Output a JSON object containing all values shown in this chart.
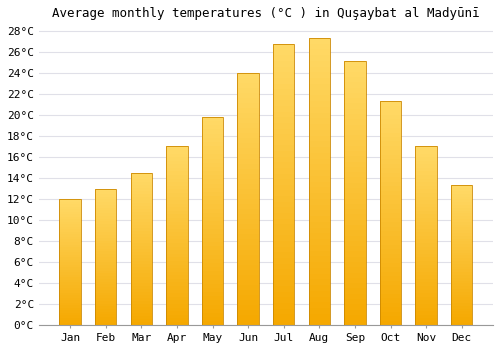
{
  "title": "Average monthly temperatures (°C ) in Quşaybat al Madyūnī",
  "months": [
    "Jan",
    "Feb",
    "Mar",
    "Apr",
    "May",
    "Jun",
    "Jul",
    "Aug",
    "Sep",
    "Oct",
    "Nov",
    "Dec"
  ],
  "values": [
    12.0,
    13.0,
    14.5,
    17.0,
    19.8,
    24.0,
    26.7,
    27.3,
    25.1,
    21.3,
    17.0,
    13.3
  ],
  "bar_color_bottom": "#F5A800",
  "bar_color_top": "#FFD966",
  "bar_edge_color": "#CC8800",
  "ylim": [
    0,
    28
  ],
  "ytick_max": 28,
  "ytick_step": 2,
  "background_color": "#ffffff",
  "grid_color": "#e0e0e8",
  "title_fontsize": 9,
  "tick_fontsize": 8,
  "bar_width": 0.6
}
